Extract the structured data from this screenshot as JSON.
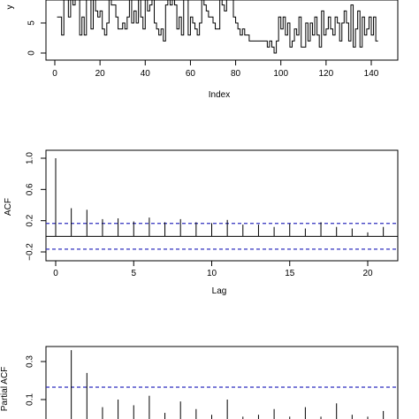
{
  "chart_data": [
    {
      "type": "line",
      "title": "",
      "xlabel": "Index",
      "ylabel": "y",
      "xlim": [
        0,
        145
      ],
      "ylim": [
        0,
        9
      ],
      "x_ticks": [
        "0",
        "20",
        "40",
        "60",
        "80",
        "100",
        "120",
        "140"
      ],
      "y_ticks": [
        "0",
        "5"
      ],
      "step": true,
      "values": [
        6,
        6,
        3,
        9,
        9,
        6,
        9,
        8,
        9,
        9,
        3,
        6,
        3,
        9,
        9,
        4,
        9,
        7,
        6,
        7,
        4,
        3,
        5,
        9,
        8,
        8,
        6,
        4,
        4,
        5,
        4,
        6,
        9,
        5,
        7,
        5,
        9,
        6,
        4,
        9,
        7,
        8,
        9,
        5,
        4,
        3,
        4,
        2,
        8,
        9,
        8,
        9,
        8,
        4,
        6,
        3,
        9,
        9,
        3,
        6,
        5,
        4,
        3,
        5,
        9,
        8,
        7,
        6,
        6,
        5,
        4,
        4,
        9,
        8,
        7,
        9,
        9,
        9,
        6,
        5,
        4,
        3,
        4,
        3,
        3,
        2,
        2,
        2,
        2,
        2,
        2,
        2,
        2,
        1,
        2,
        1,
        0,
        2,
        6,
        4,
        6,
        3,
        5,
        1,
        2,
        4,
        3,
        6,
        1,
        1,
        5,
        2,
        5,
        3,
        6,
        3,
        1,
        7,
        3,
        4,
        6,
        4,
        3,
        6,
        5,
        2,
        5,
        7,
        5,
        2,
        8,
        1,
        4,
        7,
        1,
        6,
        3,
        4,
        6,
        3,
        6,
        2,
        2
      ]
    },
    {
      "type": "bar",
      "title": "",
      "xlabel": "Lag",
      "ylabel": "ACF",
      "xlim": [
        0,
        21
      ],
      "ylim": [
        -0.2,
        1.0
      ],
      "x_ticks": [
        "0",
        "5",
        "10",
        "15",
        "20"
      ],
      "y_ticks": [
        "−0.2",
        "0.2",
        "0.6",
        "1.0"
      ],
      "confidence_bound": 0.165,
      "lags": [
        0,
        1,
        2,
        3,
        4,
        5,
        6,
        7,
        8,
        9,
        10,
        11,
        12,
        13,
        14,
        15,
        16,
        17,
        18,
        19,
        20,
        21
      ],
      "values": [
        1.0,
        0.36,
        0.34,
        0.22,
        0.23,
        0.19,
        0.24,
        0.18,
        0.22,
        0.18,
        0.17,
        0.21,
        0.15,
        0.15,
        0.12,
        0.16,
        0.1,
        0.18,
        0.12,
        0.1,
        0.05,
        0.12
      ]
    },
    {
      "type": "bar",
      "title": "",
      "xlabel": "",
      "ylabel": "Partial ACF",
      "xlim": [
        0,
        21
      ],
      "ylim": [
        0,
        0.35
      ],
      "x_ticks": [],
      "y_ticks": [
        "0.1",
        "0.3"
      ],
      "confidence_bound": 0.165,
      "lags": [
        1,
        2,
        3,
        4,
        5,
        6,
        7,
        8,
        9,
        10,
        11,
        12,
        13,
        14,
        15,
        16,
        17,
        18,
        19,
        20,
        21
      ],
      "values": [
        0.36,
        0.24,
        0.06,
        0.1,
        0.07,
        0.12,
        0.03,
        0.09,
        0.05,
        0.02,
        0.1,
        0.01,
        0.02,
        0.05,
        0.01,
        0.06,
        0.01,
        0.08,
        0.02,
        0.01,
        0.04
      ]
    }
  ]
}
